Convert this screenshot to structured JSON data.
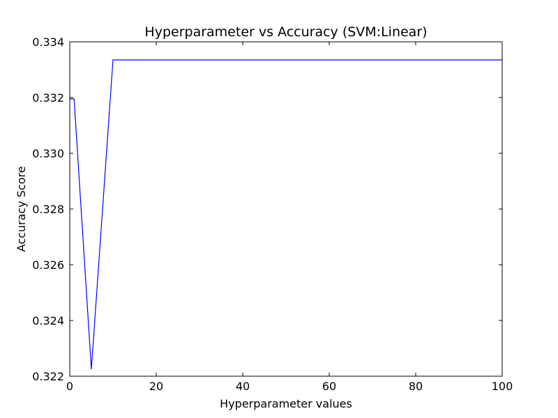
{
  "chart_data": {
    "type": "line",
    "title": "Hyperparameter vs Accuracy (SVM:Linear)",
    "xlabel": "Hyperparameter values",
    "ylabel": "Accuracy Score",
    "xlim": [
      0,
      100
    ],
    "ylim": [
      0.322,
      0.334
    ],
    "xticks": [
      0,
      20,
      40,
      60,
      80,
      100
    ],
    "xtick_labels": [
      "0",
      "20",
      "40",
      "60",
      "80",
      "100"
    ],
    "yticks": [
      0.322,
      0.324,
      0.326,
      0.328,
      0.33,
      0.332,
      0.334
    ],
    "ytick_labels": [
      "0.322",
      "0.324",
      "0.326",
      "0.328",
      "0.330",
      "0.332",
      "0.334"
    ],
    "grid": false,
    "legend": "none",
    "series": [
      {
        "color": "#0000ff",
        "x": [
          0.01,
          0.1,
          1,
          5,
          10,
          100
        ],
        "y": [
          0.33195,
          0.33195,
          0.33195,
          0.32225,
          0.33335,
          0.33335
        ]
      }
    ]
  }
}
